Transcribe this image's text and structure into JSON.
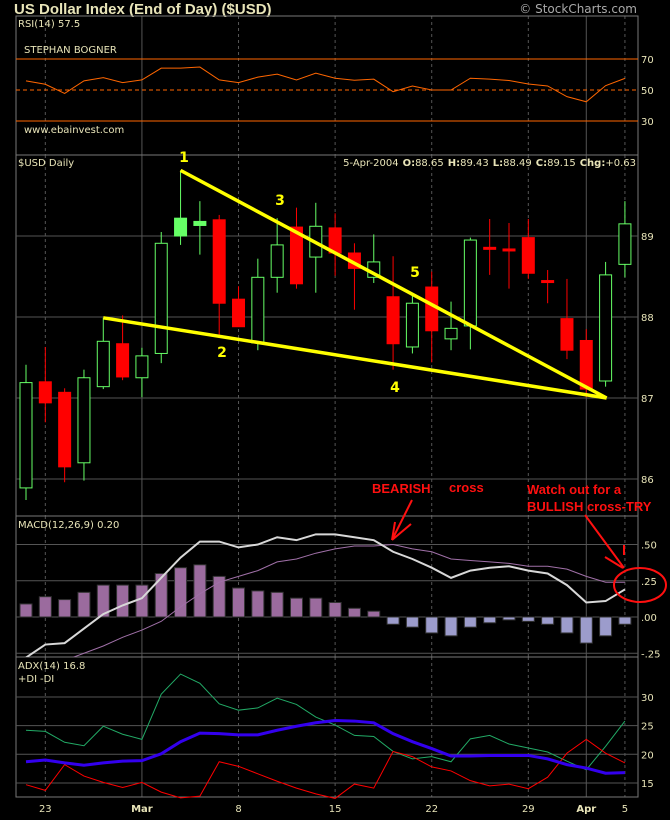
{
  "header": {
    "title": "US Dollar Index (End of Day) ($USD)",
    "copyright": "© StockCharts.com"
  },
  "colors": {
    "background": "#000000",
    "up": "#66ff66",
    "down": "#ff0000",
    "text": "#e8e4b8",
    "rsi": "#ff6600",
    "trendline": "#ffff00",
    "macd": "#d8d8d8",
    "signal": "#a070a8",
    "hist_pos": "#9b6b9e",
    "hist_neg": "#9c9ccc",
    "adx": "#3300ee",
    "plus_di": "#22aa66",
    "minus_di": "#ff0000",
    "annotation": "#ff1010"
  },
  "chart_data": [
    {
      "panel": "rsi",
      "type": "line",
      "label": "RSI(14) 57.5",
      "notes": [
        "STEPHAN BOGNER",
        "www.ebainvest.com"
      ],
      "yticks": [
        "70",
        "50",
        "30"
      ],
      "ylim": [
        10,
        90
      ],
      "reference_lines": [
        70,
        50,
        30
      ],
      "values": [
        55.9,
        53.7,
        47.8,
        55.9,
        58.0,
        54.8,
        56.5,
        64.1,
        64.1,
        64.8,
        56.5,
        54.8,
        58.3,
        60.2,
        56.5,
        60.9,
        57.6,
        56.3,
        57.0,
        48.9,
        52.6,
        50.0,
        50.0,
        57.6,
        57.0,
        56.1,
        53.9,
        52.6,
        45.7,
        42.4,
        52.8,
        57.5
      ]
    },
    {
      "panel": "price",
      "type": "candlestick",
      "label": "$USD Daily",
      "readout": {
        "date": "5-Apr-2004",
        "o_label": "O:",
        "o": "88.65",
        "h_label": "H:",
        "h": "89.43",
        "l_label": "L:",
        "l": "88.49",
        "c_label": "C:",
        "c": "89.15",
        "chg_label": "Chg:",
        "chg": "+0.63"
      },
      "yticks": [
        "89",
        "88",
        "87",
        "86"
      ],
      "ylim": [
        85.6,
        90.0
      ],
      "dates": [
        "2004-02-20",
        "2004-02-23",
        "2004-02-24",
        "2004-02-25",
        "2004-02-26",
        "2004-02-27",
        "2004-03-01",
        "2004-03-02",
        "2004-03-03",
        "2004-03-04",
        "2004-03-05",
        "2004-03-08",
        "2004-03-09",
        "2004-03-10",
        "2004-03-11",
        "2004-03-12",
        "2004-03-15",
        "2004-03-16",
        "2004-03-17",
        "2004-03-18",
        "2004-03-19",
        "2004-03-22",
        "2004-03-23",
        "2004-03-24",
        "2004-03-25",
        "2004-03-26",
        "2004-03-29",
        "2004-03-30",
        "2004-03-31",
        "2004-04-01",
        "2004-04-02",
        "2004-04-05"
      ],
      "ohlc": [
        [
          85.89,
          87.41,
          85.74,
          87.19
        ],
        [
          87.2,
          87.63,
          86.7,
          86.94
        ],
        [
          87.07,
          87.12,
          85.96,
          86.15
        ],
        [
          86.2,
          87.35,
          85.98,
          87.25
        ],
        [
          87.14,
          87.99,
          87.11,
          87.7
        ],
        [
          87.67,
          88.02,
          87.22,
          87.26
        ],
        [
          87.25,
          87.62,
          87.01,
          87.52
        ],
        [
          87.55,
          89.05,
          87.43,
          88.91
        ],
        [
          89.22,
          89.81,
          88.89,
          89.0
        ],
        [
          89.18,
          89.43,
          88.77,
          89.13
        ],
        [
          89.2,
          89.26,
          87.77,
          88.17
        ],
        [
          88.22,
          88.38,
          87.88,
          87.88
        ],
        [
          87.68,
          88.72,
          87.59,
          88.49
        ],
        [
          88.49,
          89.22,
          88.3,
          88.89
        ],
        [
          89.11,
          89.35,
          88.35,
          88.41
        ],
        [
          88.74,
          89.41,
          88.3,
          89.12
        ],
        [
          89.1,
          89.28,
          88.51,
          88.79
        ],
        [
          88.79,
          88.91,
          88.09,
          88.6
        ],
        [
          88.49,
          89.02,
          88.42,
          88.68
        ],
        [
          88.25,
          88.75,
          87.35,
          87.67
        ],
        [
          87.63,
          88.27,
          87.55,
          88.17
        ],
        [
          88.37,
          88.56,
          87.44,
          87.83
        ],
        [
          87.73,
          88.19,
          87.59,
          87.86
        ],
        [
          87.89,
          88.98,
          87.6,
          88.95
        ],
        [
          88.86,
          89.21,
          88.52,
          88.84
        ],
        [
          88.84,
          89.16,
          88.35,
          88.82
        ],
        [
          88.98,
          89.21,
          88.47,
          88.54
        ],
        [
          88.45,
          88.58,
          88.17,
          88.43
        ],
        [
          87.98,
          88.47,
          87.48,
          87.59
        ],
        [
          87.71,
          87.85,
          87.01,
          87.11
        ],
        [
          87.21,
          88.68,
          87.14,
          88.52
        ],
        [
          88.65,
          89.43,
          88.49,
          89.15
        ]
      ],
      "filled_up": [
        8,
        9
      ],
      "trendlines": [
        {
          "from": [
            "2004-03-03",
            89.81
          ],
          "to": [
            "2004-04-02",
            87.0
          ]
        },
        {
          "from": [
            "2004-02-26",
            87.99
          ],
          "to": [
            "2004-04-02",
            87.0
          ]
        }
      ],
      "wave_labels": [
        "1",
        "2",
        "3",
        "4",
        "5"
      ]
    },
    {
      "panel": "macd",
      "type": "line+bar",
      "label": "MACD(12,26,9) 0.20",
      "yticks": [
        ".50",
        ".25",
        ".00",
        "-.25"
      ],
      "ylim": [
        -0.28,
        0.7
      ],
      "macd": [
        -0.28,
        -0.19,
        -0.18,
        -0.08,
        0.02,
        0.08,
        0.13,
        0.27,
        0.41,
        0.52,
        0.52,
        0.48,
        0.5,
        0.55,
        0.53,
        0.57,
        0.57,
        0.55,
        0.53,
        0.45,
        0.4,
        0.34,
        0.27,
        0.32,
        0.34,
        0.35,
        0.32,
        0.3,
        0.22,
        0.1,
        0.11,
        0.19
      ],
      "signal": [
        -0.37,
        -0.33,
        -0.3,
        -0.25,
        -0.2,
        -0.14,
        -0.09,
        -0.03,
        0.07,
        0.16,
        0.24,
        0.28,
        0.32,
        0.38,
        0.4,
        0.44,
        0.47,
        0.49,
        0.49,
        0.5,
        0.47,
        0.45,
        0.4,
        0.39,
        0.38,
        0.37,
        0.35,
        0.35,
        0.33,
        0.28,
        0.24,
        0.24
      ],
      "histogram": [
        0.09,
        0.14,
        0.12,
        0.17,
        0.22,
        0.22,
        0.22,
        0.3,
        0.34,
        0.36,
        0.28,
        0.2,
        0.18,
        0.17,
        0.13,
        0.13,
        0.1,
        0.06,
        0.04,
        -0.05,
        -0.07,
        -0.11,
        -0.13,
        -0.07,
        -0.04,
        -0.02,
        -0.03,
        -0.05,
        -0.11,
        -0.18,
        -0.13,
        -0.05
      ],
      "annotations": {
        "bearish": "BEARISH",
        "cross": "cross",
        "watch": "Watch out for a",
        "bullish": "BULLISH cross-TRY"
      }
    },
    {
      "panel": "adx",
      "type": "line",
      "label": "ADX(14) 16.8",
      "legend": {
        "plus": "+DI",
        "minus": "-DI"
      },
      "yticks": [
        "30",
        "25",
        "20",
        "15"
      ],
      "ylim": [
        11,
        37
      ],
      "adx": [
        18.7,
        19.0,
        18.5,
        18.1,
        18.5,
        18.8,
        18.9,
        20.1,
        22.2,
        23.7,
        23.6,
        23.4,
        23.4,
        24.2,
        24.9,
        25.5,
        25.9,
        25.8,
        25.5,
        23.6,
        22.2,
        21.0,
        19.7,
        19.7,
        19.8,
        19.8,
        19.8,
        19.2,
        18.2,
        17.6,
        16.7,
        16.8
      ],
      "plus_di": [
        24.2,
        24.0,
        22.1,
        21.5,
        24.9,
        23.5,
        22.6,
        30.5,
        34.0,
        32.4,
        28.8,
        27.7,
        28.1,
        29.8,
        28.7,
        26.5,
        25.1,
        23.3,
        23.1,
        20.5,
        19.2,
        19.6,
        18.7,
        22.7,
        23.3,
        21.8,
        21.1,
        20.4,
        18.8,
        17.3,
        21.4,
        25.8
      ],
      "minus_di": [
        14.7,
        13.7,
        18.2,
        16.2,
        15.1,
        14.2,
        15.1,
        13.4,
        12.4,
        12.7,
        18.7,
        17.9,
        16.6,
        15.3,
        14.1,
        13.1,
        12.3,
        14.8,
        14.1,
        20.5,
        19.6,
        17.8,
        17.1,
        15.4,
        14.5,
        14.8,
        14.0,
        16.0,
        20.2,
        22.6,
        20.2,
        18.5
      ]
    }
  ],
  "xaxis": {
    "ticks": [
      {
        "i": 1,
        "label": "23"
      },
      {
        "i": 6,
        "label": "Mar"
      },
      {
        "i": 11,
        "label": "8"
      },
      {
        "i": 16,
        "label": "15"
      },
      {
        "i": 21,
        "label": "22"
      },
      {
        "i": 26,
        "label": "29"
      },
      {
        "i": 29,
        "label": "Apr"
      },
      {
        "i": 31,
        "label": "5"
      }
    ]
  }
}
